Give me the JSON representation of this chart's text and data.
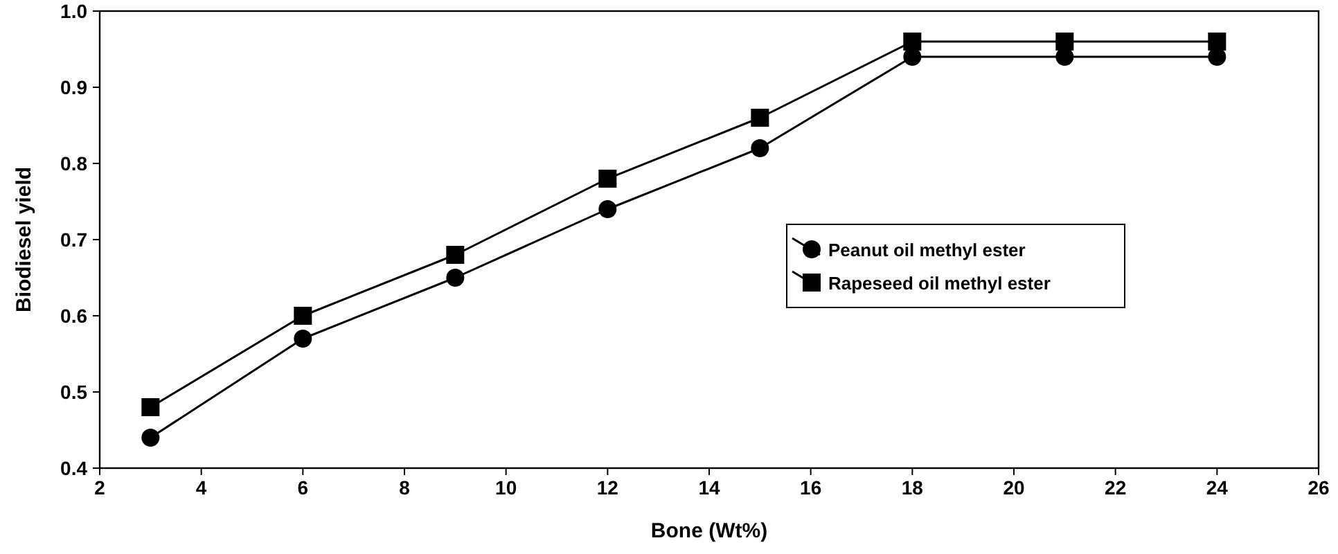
{
  "chart_data": {
    "type": "line",
    "xlabel": "Bone (Wt%)",
    "ylabel": "Biodiesel yield",
    "x": [
      3,
      6,
      9,
      12,
      15,
      18,
      21,
      24
    ],
    "series": [
      {
        "name": "Peanut oil methyl ester",
        "color": "#000000",
        "marker": "circle",
        "values": [
          0.44,
          0.57,
          0.65,
          0.74,
          0.82,
          0.94,
          0.94,
          0.94
        ]
      },
      {
        "name": "Rapeseed oil methyl ester",
        "color": "#000000",
        "marker": "square",
        "values": [
          0.48,
          0.6,
          0.68,
          0.78,
          0.86,
          0.96,
          0.96,
          0.96
        ]
      }
    ],
    "xlim": [
      2,
      26
    ],
    "xticks": [
      2,
      4,
      6,
      8,
      10,
      12,
      14,
      16,
      18,
      20,
      22,
      24,
      26
    ],
    "ylim": [
      0.4,
      1.0
    ],
    "yticks": [
      0.4,
      0.5,
      0.6,
      0.7,
      0.8,
      0.9,
      {
        "value": 1.0,
        "label": "1.0"
      }
    ],
    "grid": false,
    "legend": "right",
    "line_style": "solid"
  }
}
